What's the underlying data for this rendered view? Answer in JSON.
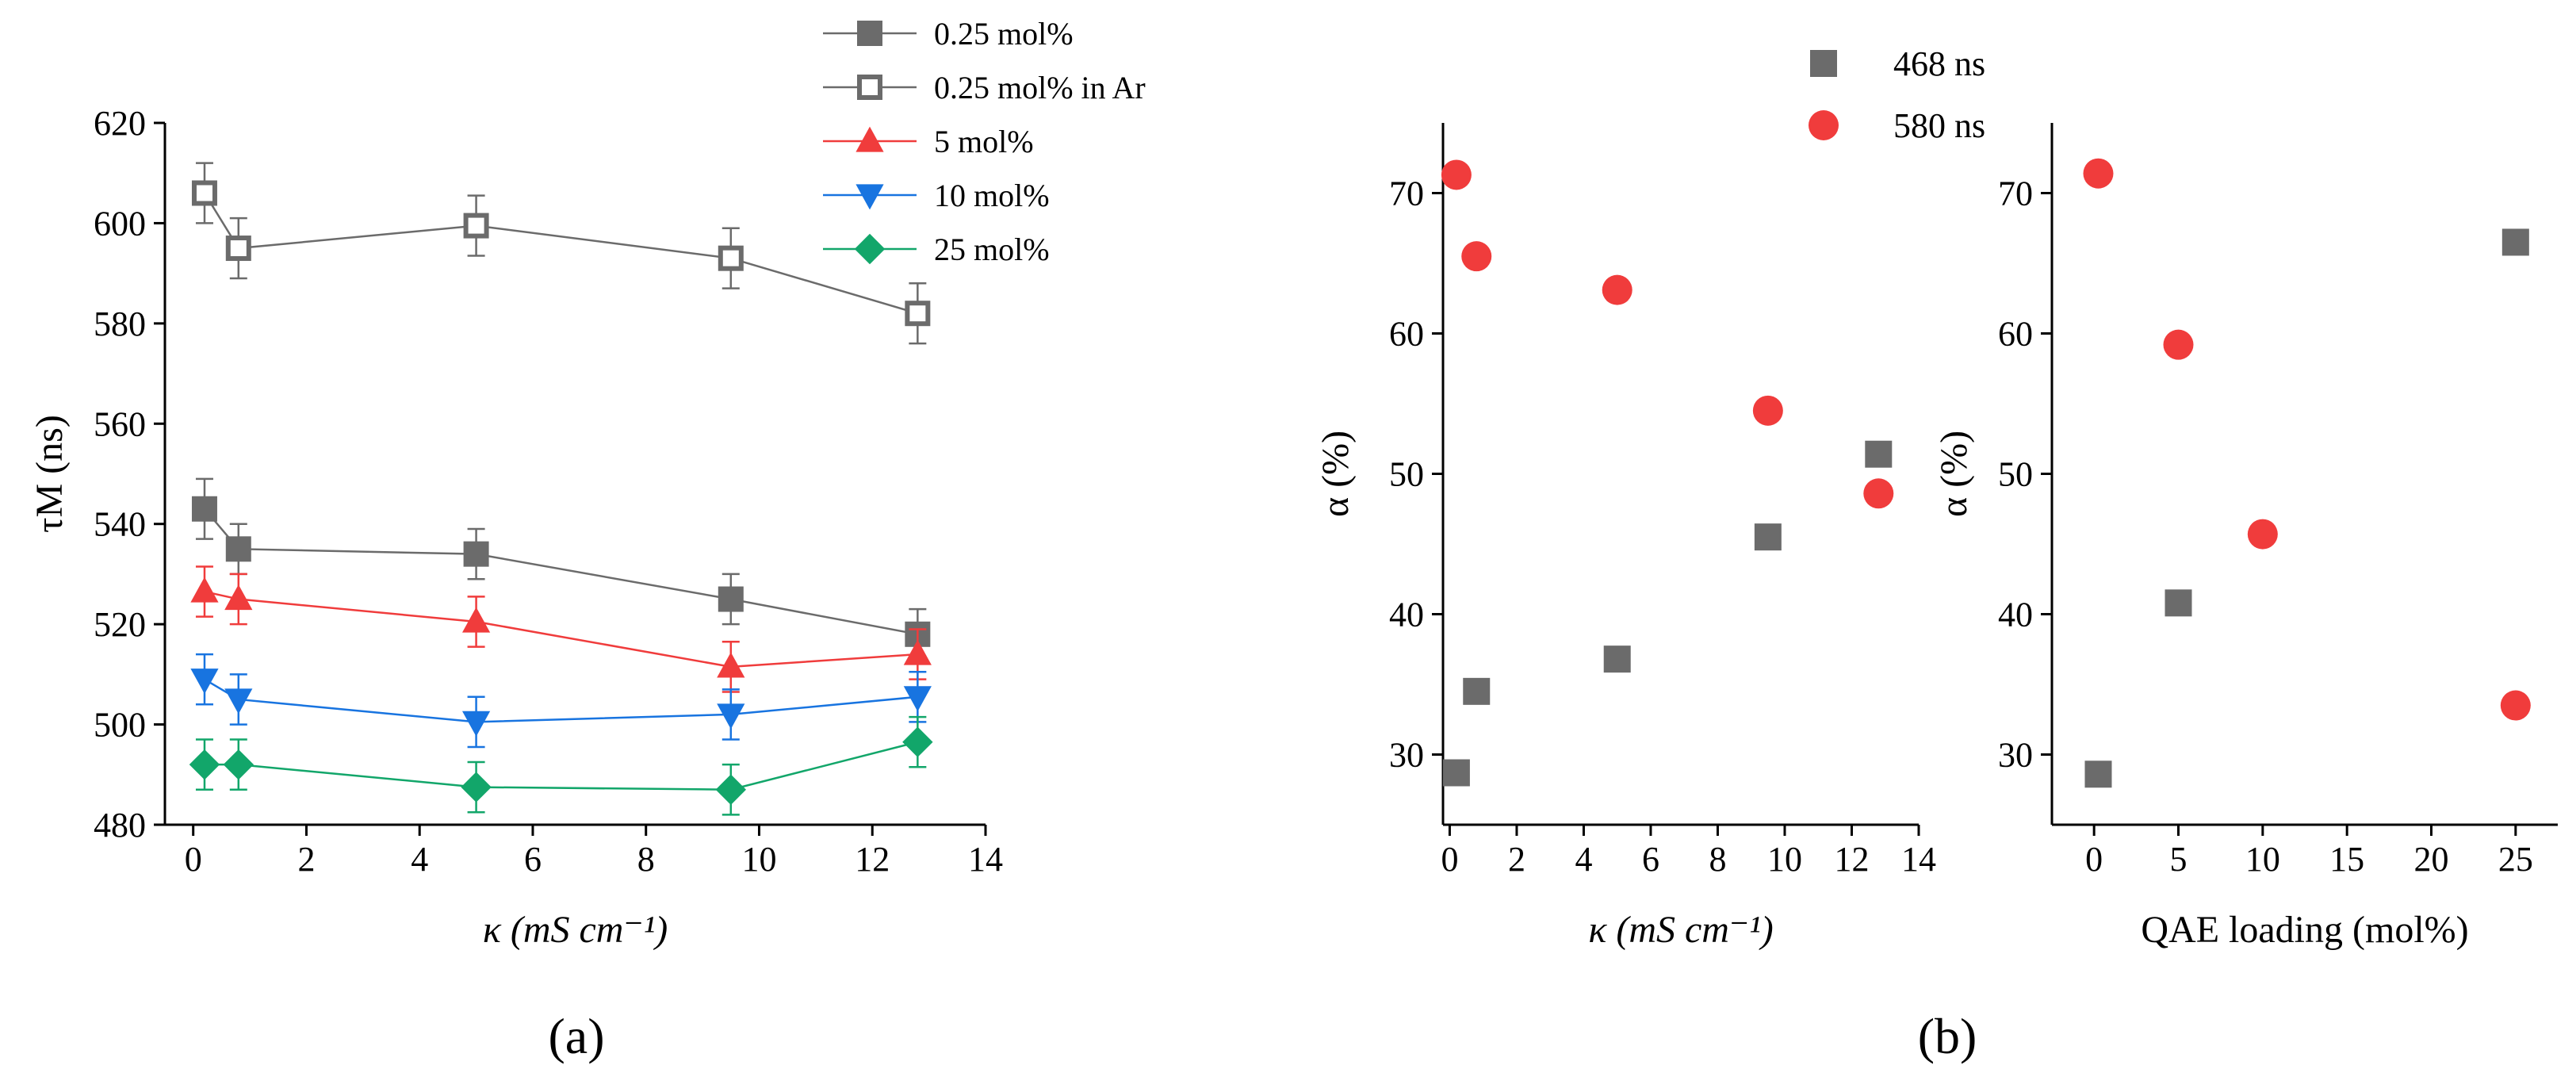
{
  "chart_data": [
    {
      "panel": "(a)",
      "type": "line",
      "xlabel": "κ (mS cm⁻¹)",
      "ylabel": "τM (ns)",
      "xlim": [
        -0.5,
        14
      ],
      "ylim": [
        480,
        620
      ],
      "xticks": [
        0,
        2,
        4,
        6,
        8,
        10,
        12,
        14
      ],
      "yticks": [
        480,
        500,
        520,
        540,
        560,
        580,
        600,
        620
      ],
      "legend_position": "top-right",
      "x": [
        0.2,
        0.8,
        5.0,
        9.5,
        12.8
      ],
      "series": [
        {
          "name": "0.25 mol%",
          "marker": "square-filled",
          "color": "#6b6b6b",
          "values": [
            543,
            535,
            534,
            525,
            518
          ],
          "errors": [
            6,
            5,
            5,
            5,
            5
          ]
        },
        {
          "name": "0.25 mol% in Ar",
          "marker": "square-open",
          "color": "#6b6b6b",
          "values": [
            606,
            595,
            599.5,
            593,
            582
          ],
          "errors": [
            6,
            6,
            6,
            6,
            6
          ]
        },
        {
          "name": "5 mol%",
          "marker": "triangle-up",
          "color": "#f03c3c",
          "values": [
            526.5,
            525,
            520.5,
            511.5,
            514
          ],
          "errors": [
            5,
            5,
            5,
            5,
            5
          ]
        },
        {
          "name": "10 mol%",
          "marker": "triangle-down",
          "color": "#1874e0",
          "values": [
            509,
            505,
            500.5,
            502,
            505.5
          ],
          "errors": [
            5,
            5,
            5,
            5,
            5
          ]
        },
        {
          "name": "25 mol%",
          "marker": "diamond",
          "color": "#12a66a",
          "values": [
            492,
            492,
            487.5,
            487,
            496.5
          ],
          "errors": [
            5,
            5,
            5,
            5,
            5
          ]
        }
      ]
    },
    {
      "panel": "(b)",
      "type": "scatter",
      "xlabel": "κ (mS cm⁻¹)",
      "ylabel": "α (%)",
      "xlim": [
        -0.2,
        14
      ],
      "ylim": [
        25,
        75
      ],
      "xticks": [
        0,
        2,
        4,
        6,
        8,
        10,
        12,
        14
      ],
      "yticks": [
        30,
        40,
        50,
        60,
        70
      ],
      "legend_position": "top",
      "series": [
        {
          "name": "468 ns",
          "marker": "square-filled",
          "color": "#6b6b6b",
          "x": [
            0.2,
            0.8,
            5.0,
            9.5,
            12.8
          ],
          "y": [
            28.7,
            34.5,
            36.8,
            45.5,
            51.4
          ]
        },
        {
          "name": "580 ns",
          "marker": "circle",
          "color": "#f03c3c",
          "x": [
            0.2,
            0.8,
            5.0,
            9.5,
            12.8
          ],
          "y": [
            71.3,
            65.5,
            63.1,
            54.5,
            48.6
          ]
        }
      ]
    },
    {
      "panel": "(b)",
      "type": "scatter",
      "xlabel": "QAE loading (mol%)",
      "ylabel": "α (%)",
      "xlim": [
        -2.5,
        27.5
      ],
      "ylim": [
        25,
        75
      ],
      "xticks": [
        0,
        5,
        10,
        15,
        20,
        25
      ],
      "yticks": [
        30,
        40,
        50,
        60,
        70
      ],
      "series": [
        {
          "name": "468 ns",
          "marker": "square-filled",
          "color": "#6b6b6b",
          "x": [
            0.25,
            5,
            25
          ],
          "y": [
            28.6,
            40.8,
            66.5
          ]
        },
        {
          "name": "580 ns",
          "marker": "circle",
          "color": "#f03c3c",
          "x": [
            0.25,
            5,
            10,
            25
          ],
          "y": [
            71.4,
            59.2,
            45.7,
            33.5
          ]
        }
      ]
    }
  ]
}
